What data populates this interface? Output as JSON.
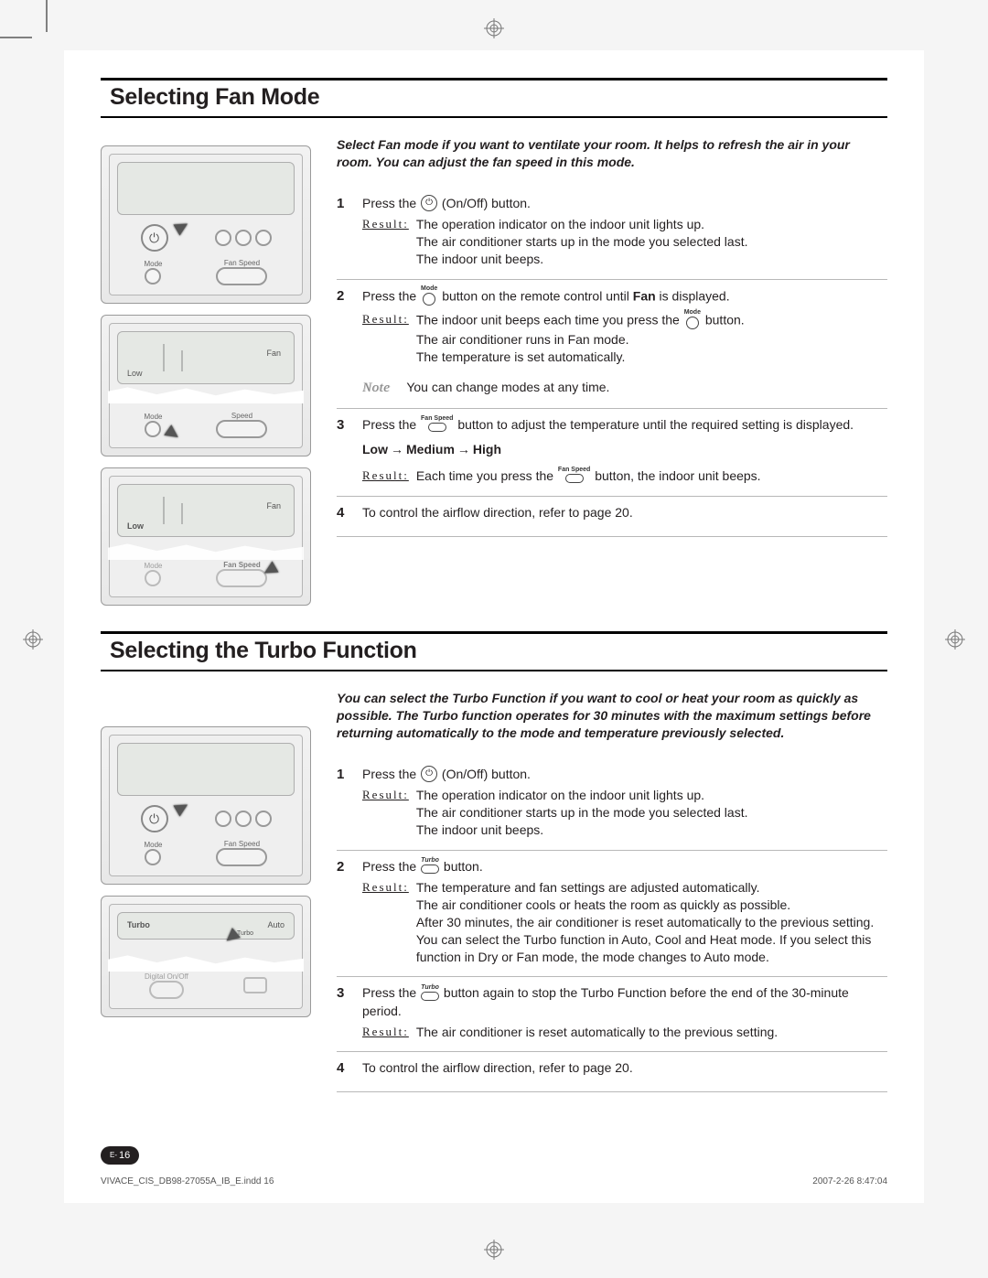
{
  "page": {
    "number_prefix": "E-",
    "number": "16",
    "footer_file": "VIVACE_CIS_DB98-27055A_IB_E.indd   16",
    "footer_date": "2007-2-26   8:47:04"
  },
  "labels": {
    "result": "Result:",
    "note": "Note"
  },
  "icons": {
    "power_tip": "⏻",
    "mode_label": "Mode",
    "fanspeed_label": "Fan Speed",
    "turbo_label": "Turbo"
  },
  "fan_section": {
    "title": "Selecting Fan Mode",
    "intro": "Select Fan mode if you want to ventilate your room. It helps to refresh the air in your room. You can adjust the fan speed in this mode.",
    "remote_labels": {
      "mode": "Mode",
      "fanspeed": "Fan Speed",
      "speed": "Speed",
      "fan": "Fan",
      "low": "Low"
    },
    "steps": [
      {
        "num": "1",
        "main_before": "Press the ",
        "icon": "power",
        "main_after": " (On/Off) button.",
        "result": "The operation indicator on the indoor unit lights up.\nThe air conditioner starts up in the mode you selected last.\nThe indoor unit beeps."
      },
      {
        "num": "2",
        "main_before": "Press the ",
        "icon": "mode",
        "main_mid": " button on the remote control until ",
        "bold": "Fan",
        "main_after": " is displayed.",
        "result_before": "The indoor unit beeps each time you press the ",
        "result_icon": "mode",
        "result_after": " button.\nThe air conditioner runs in Fan mode.\nThe temperature is set automatically.",
        "note": "You can change modes at any time."
      },
      {
        "num": "3",
        "main_before": "Press the ",
        "icon": "fanspeed",
        "main_after": " button to adjust the temperature until the required setting is displayed.",
        "sequence": [
          "Low",
          "Medium",
          "High"
        ],
        "result_before": "Each time you press the ",
        "result_icon": "fanspeed",
        "result_after": " button, the indoor unit beeps."
      },
      {
        "num": "4",
        "main": "To control the airflow direction, refer to page 20."
      }
    ]
  },
  "turbo_section": {
    "title": "Selecting the Turbo Function",
    "intro": "You can select the Turbo Function if you want to cool or heat your room as quickly as possible. The Turbo function operates for 30 minutes with the maximum settings before returning automatically to the mode and temperature previously selected.",
    "remote_labels": {
      "mode": "Mode",
      "fanspeed": "Fan Speed",
      "turbo": "Turbo",
      "auto": "Auto",
      "digital": "Digital On/Off"
    },
    "steps": [
      {
        "num": "1",
        "main_before": "Press the ",
        "icon": "power",
        "main_after": " (On/Off) button.",
        "result": "The operation indicator on the indoor unit lights up.\nThe air conditioner starts up in the mode you selected last.\nThe indoor unit beeps."
      },
      {
        "num": "2",
        "main_before": "Press the ",
        "icon": "turbo",
        "main_after": " button.",
        "result": "The temperature and fan settings are adjusted automatically.\nThe air conditioner cools or heats the room as quickly as possible.\nAfter 30 minutes, the air conditioner is reset automatically to the previous setting.\nYou can select the Turbo function in Auto, Cool and Heat mode. If you select this function in Dry or Fan mode, the mode changes to Auto mode."
      },
      {
        "num": "3",
        "main_before": "Press the ",
        "icon": "turbo",
        "main_after": " button again to stop the Turbo Function before the end of the 30-minute period.",
        "result": "The air conditioner is reset automatically to the previous setting."
      },
      {
        "num": "4",
        "main": "To control the airflow direction, refer to page 20."
      }
    ]
  }
}
